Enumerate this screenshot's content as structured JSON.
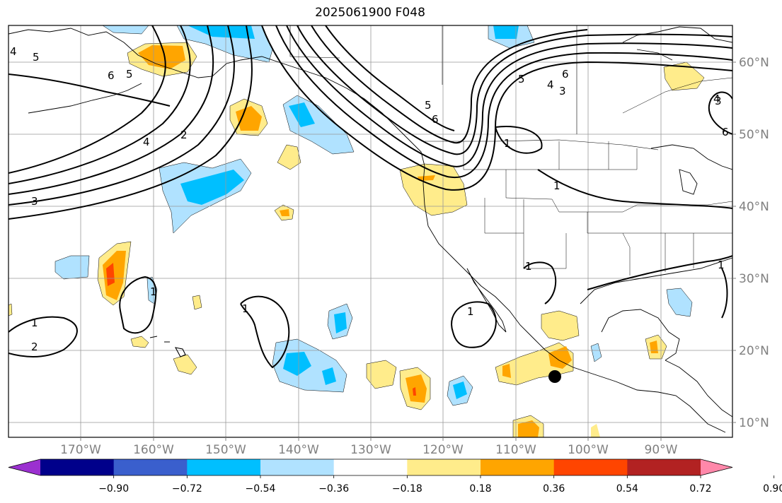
{
  "title": "2025061900 F048",
  "lon_labels": [
    "170°W",
    "160°W",
    "150°W",
    "140°W",
    "130°W",
    "120°W",
    "110°W",
    "100°W",
    "90°W"
  ],
  "lat_labels": [
    "60°N",
    "50°N",
    "40°N",
    "30°N",
    "20°N",
    "10°N"
  ],
  "colorbar": {
    "ticks": [
      "−0.90",
      "−0.72",
      "−0.54",
      "−0.36",
      "−0.18",
      "0.18",
      "0.36",
      "0.54",
      "0.72",
      "0.90"
    ],
    "colors": [
      "#9b30d0",
      "#00008b",
      "#3a5fcd",
      "#00bfff",
      "#b0e2ff",
      "#ffffff",
      "#ffec8b",
      "#ffa500",
      "#ff4500",
      "#b22222",
      "#ff88aa"
    ]
  },
  "contour_labels": [
    "4",
    "5",
    "3",
    "6",
    "5",
    "4",
    "2",
    "3",
    "5",
    "6",
    "5",
    "4",
    "3",
    "6",
    "1",
    "1",
    "1",
    "1",
    "1",
    "1",
    "1",
    "1",
    "2",
    "4",
    "6"
  ],
  "marker": "black-dot"
}
